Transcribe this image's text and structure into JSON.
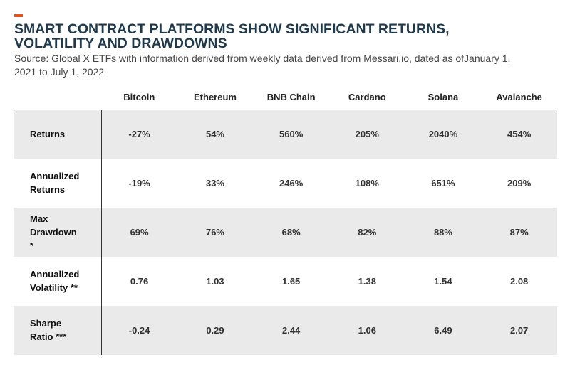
{
  "header": {
    "title": "SMART CONTRACT PLATFORMS SHOW SIGNIFICANT RETURNS, VOLATILITY AND DRAWDOWNS",
    "source": "Source: Global X ETFs with information derived from weekly data derived from Messari.io, dated as ofJanuary 1, 2021 to July 1, 2022",
    "accent_color": "#e0551e",
    "title_color": "#1f3a4d"
  },
  "chart_data": {
    "type": "table",
    "title": "SMART CONTRACT PLATFORMS SHOW SIGNIFICANT RETURNS, VOLATILITY AND DRAWDOWNS",
    "columns": [
      "Bitcoin",
      "Ethereum",
      "BNB Chain",
      "Cardano",
      "Solana",
      "Avalanche"
    ],
    "rows": [
      {
        "label": "Returns",
        "label_lines": [
          "Returns"
        ],
        "values": [
          "-27%",
          "54%",
          "560%",
          "205%",
          "2040%",
          "454%"
        ]
      },
      {
        "label": "Annualized Returns",
        "label_lines": [
          "Annualized",
          "Returns"
        ],
        "values": [
          "-19%",
          "33%",
          "246%",
          "108%",
          "651%",
          "209%"
        ]
      },
      {
        "label": "Max Drawdown *",
        "label_lines": [
          "Max",
          "Drawdown",
          "*"
        ],
        "values": [
          "69%",
          "76%",
          "68%",
          "82%",
          "88%",
          "87%"
        ]
      },
      {
        "label": "Annualized Volatility **",
        "label_lines": [
          "Annualized",
          "Volatility **"
        ],
        "values": [
          "0.76",
          "1.03",
          "1.65",
          "1.38",
          "1.54",
          "2.08"
        ]
      },
      {
        "label": "Sharpe Ratio ***",
        "label_lines": [
          "Sharpe",
          "Ratio ***"
        ],
        "values": [
          "-0.24",
          "0.29",
          "2.44",
          "1.06",
          "6.49",
          "2.07"
        ]
      }
    ],
    "shaded_rows": [
      0,
      2,
      4
    ],
    "shade_color": "#eaeaea"
  }
}
